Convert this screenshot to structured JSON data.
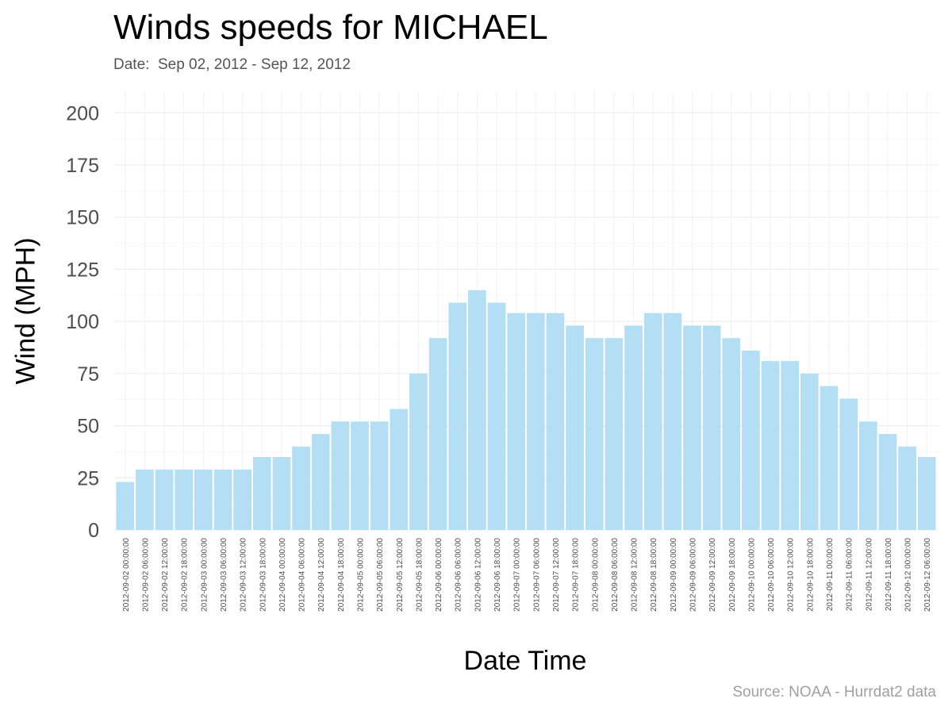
{
  "chart_data": {
    "type": "bar",
    "title": "Winds speeds for MICHAEL",
    "subtitle": "Date:  Sep 02, 2012 - Sep 12, 2012",
    "xlabel": "Date Time",
    "ylabel": "Wind (MPH)",
    "caption": "Source: NOAA - Hurrdat2 data",
    "ylim": [
      0,
      210
    ],
    "yticks": [
      0,
      25,
      50,
      75,
      100,
      125,
      150,
      175,
      200
    ],
    "grid": true,
    "bar_color": "#b3def3",
    "categories": [
      "2012-09-02 00:00:00",
      "2012-09-02 06:00:00",
      "2012-09-02 12:00:00",
      "2012-09-02 18:00:00",
      "2012-09-03 00:00:00",
      "2012-09-03 06:00:00",
      "2012-09-03 12:00:00",
      "2012-09-03 18:00:00",
      "2012-09-04 00:00:00",
      "2012-09-04 06:00:00",
      "2012-09-04 12:00:00",
      "2012-09-04 18:00:00",
      "2012-09-05 00:00:00",
      "2012-09-05 06:00:00",
      "2012-09-05 12:00:00",
      "2012-09-05 18:00:00",
      "2012-09-06 00:00:00",
      "2012-09-06 06:00:00",
      "2012-09-06 12:00:00",
      "2012-09-06 18:00:00",
      "2012-09-07 00:00:00",
      "2012-09-07 06:00:00",
      "2012-09-07 12:00:00",
      "2012-09-07 18:00:00",
      "2012-09-08 00:00:00",
      "2012-09-08 06:00:00",
      "2012-09-08 12:00:00",
      "2012-09-08 18:00:00",
      "2012-09-09 00:00:00",
      "2012-09-09 06:00:00",
      "2012-09-09 12:00:00",
      "2012-09-09 18:00:00",
      "2012-09-10 00:00:00",
      "2012-09-10 06:00:00",
      "2012-09-10 12:00:00",
      "2012-09-10 18:00:00",
      "2012-09-11 00:00:00",
      "2012-09-11 06:00:00",
      "2012-09-11 12:00:00",
      "2012-09-11 18:00:00",
      "2012-09-12 00:00:00",
      "2012-09-12 06:00:00"
    ],
    "values": [
      23,
      29,
      29,
      29,
      29,
      29,
      29,
      35,
      35,
      40,
      46,
      52,
      52,
      52,
      58,
      75,
      92,
      109,
      115,
      109,
      104,
      104,
      104,
      98,
      92,
      92,
      98,
      104,
      104,
      98,
      98,
      92,
      86,
      81,
      81,
      75,
      69,
      63,
      52,
      46,
      40,
      35
    ]
  }
}
